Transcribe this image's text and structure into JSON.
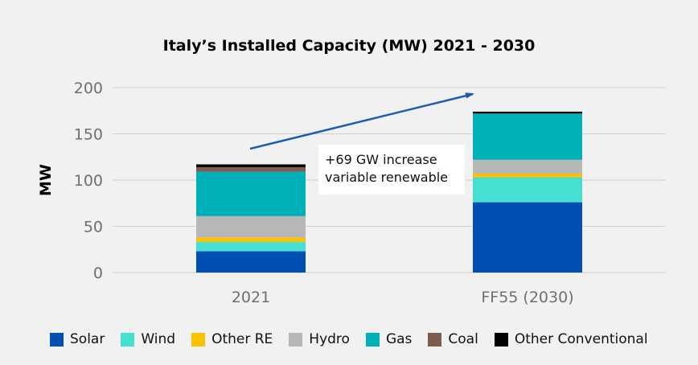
{
  "chart_data": {
    "type": "bar",
    "stacked": true,
    "title": "Italy’s Installed Capacity (MW) 2021 - 2030",
    "ylabel": "MW",
    "xlabel": "",
    "ylim": [
      0,
      200
    ],
    "yticks": [
      0,
      50,
      100,
      150,
      200
    ],
    "grid": true,
    "legend_position": "bottom",
    "categories": [
      "2021",
      "FF55 (2030)"
    ],
    "series": [
      {
        "name": "Solar",
        "color": "#0050b4",
        "values": [
          23,
          76
        ]
      },
      {
        "name": "Wind",
        "color": "#46e0d2",
        "values": [
          10,
          27
        ]
      },
      {
        "name": "Other RE",
        "color": "#ffc000",
        "values": [
          5,
          4
        ]
      },
      {
        "name": "Hydro",
        "color": "#b7b7b7",
        "values": [
          23,
          15
        ]
      },
      {
        "name": "Gas",
        "color": "#00b0b8",
        "values": [
          48,
          50
        ]
      },
      {
        "name": "Coal",
        "color": "#7f5a4f",
        "values": [
          5,
          0
        ]
      },
      {
        "name": "Other Conventional",
        "color": "#000000",
        "values": [
          3,
          2
        ]
      }
    ],
    "annotations": [
      {
        "text_line1": "+69 GW increase",
        "text_line2": "variable renewable"
      }
    ],
    "arrow_color": "#1d5bb8"
  }
}
